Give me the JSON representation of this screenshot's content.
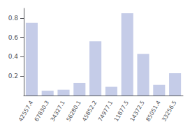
{
  "chart_data": {
    "type": "bar",
    "categories": [
      "42557.4",
      "67830.3",
      "34327.1",
      "56280.1",
      "45852.2",
      "74977.1",
      "11877.5",
      "14372.5",
      "85051.4",
      "33256.5"
    ],
    "values": [
      0.75,
      0.05,
      0.06,
      0.13,
      0.56,
      0.09,
      0.85,
      0.43,
      0.11,
      0.23
    ],
    "color": "#c5cce8",
    "ylim": [
      0,
      0.9
    ],
    "yticks": [
      0.2,
      0.4,
      0.6,
      0.8
    ],
    "grid": false
  }
}
